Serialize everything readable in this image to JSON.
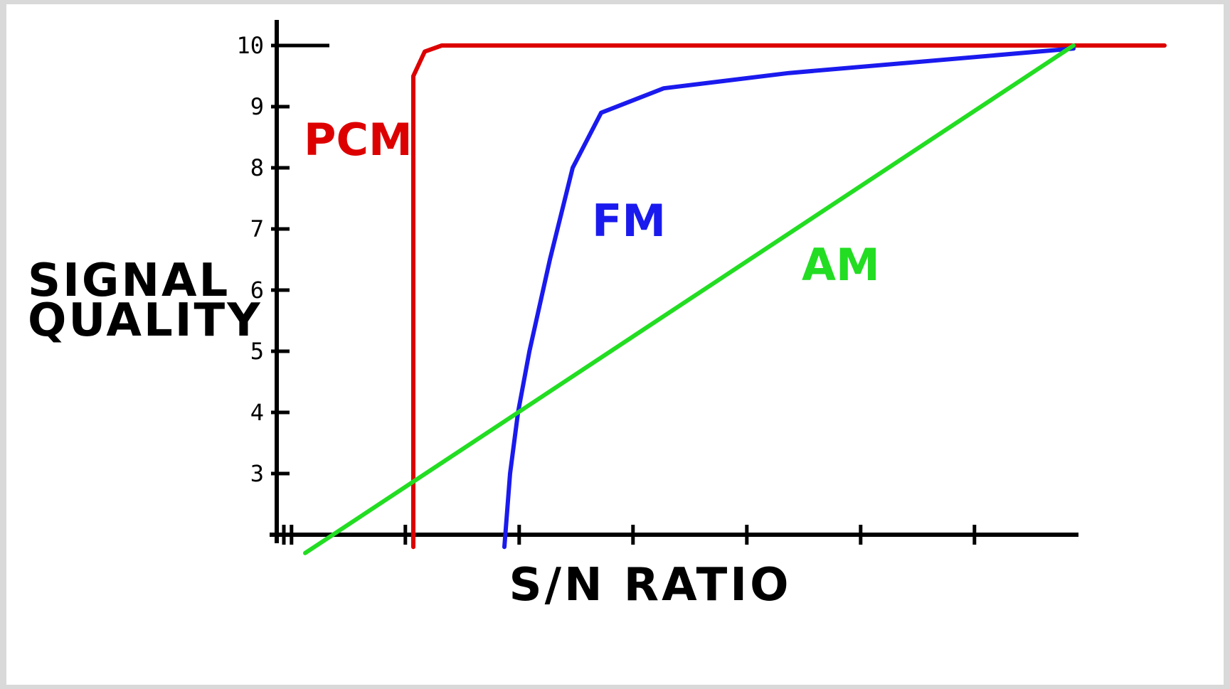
{
  "chart_data": {
    "type": "line",
    "title": "",
    "xlabel": "S/N RATIO",
    "ylabel_lines": [
      "SIGNAL",
      "QUALITY"
    ],
    "x_tick_labels": [],
    "y_ticks": [
      10,
      9,
      8,
      7,
      6,
      5,
      4,
      3
    ],
    "xlim": [
      0,
      7
    ],
    "ylim": [
      2,
      10
    ],
    "grid": false,
    "legend": "none (series labelled directly on plot)",
    "series": [
      {
        "name": "PCM",
        "color": "#dd0000",
        "points": [
          [
            1.2,
            1.8
          ],
          [
            1.2,
            3.2
          ],
          [
            1.2,
            9.5
          ],
          [
            1.3,
            9.9
          ],
          [
            1.45,
            10
          ],
          [
            7.8,
            10
          ]
        ]
      },
      {
        "name": "FM",
        "color": "#1a1aee",
        "points": [
          [
            2.0,
            1.8
          ],
          [
            2.05,
            3
          ],
          [
            2.12,
            4
          ],
          [
            2.22,
            5
          ],
          [
            2.4,
            6.5
          ],
          [
            2.6,
            8
          ],
          [
            2.85,
            8.9
          ],
          [
            3.4,
            9.3
          ],
          [
            4.5,
            9.55
          ],
          [
            7.0,
            9.95
          ]
        ]
      },
      {
        "name": "AM",
        "color": "#22dd22",
        "points": [
          [
            0.25,
            1.7
          ],
          [
            7.0,
            10
          ]
        ]
      }
    ]
  }
}
